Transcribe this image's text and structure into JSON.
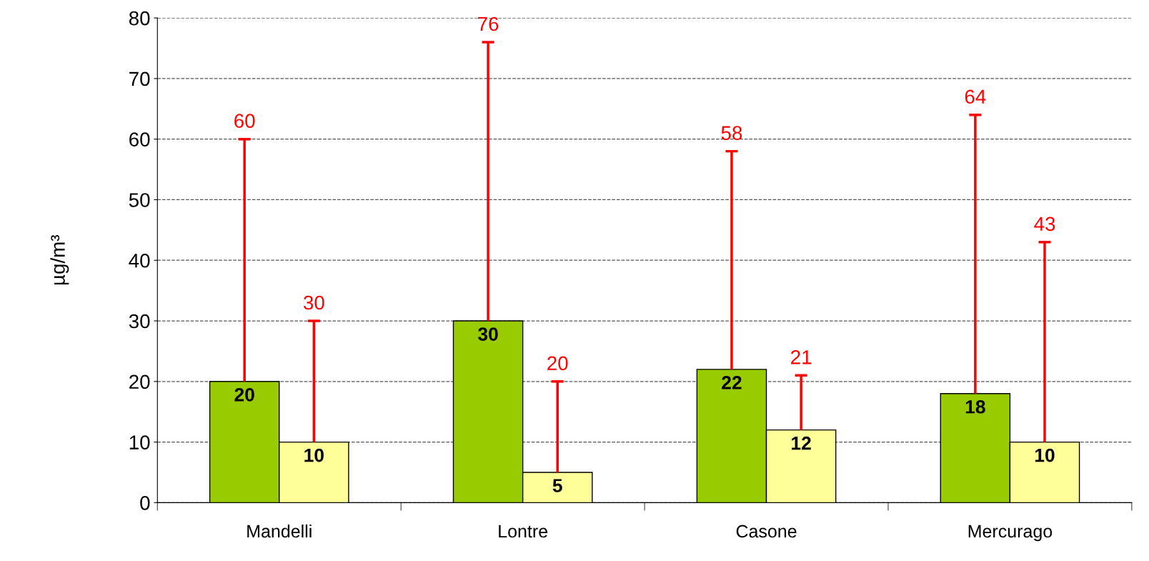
{
  "chart_data": {
    "type": "bar",
    "ylabel": "µg/m³",
    "categories": [
      "Mandelli",
      "Lontre",
      "Casone",
      "Mercurago"
    ],
    "series": [
      {
        "color": "#99cc00",
        "values": [
          20,
          30,
          22,
          18
        ],
        "errors": [
          [
            20,
            60
          ],
          [
            30,
            76
          ],
          [
            22,
            58
          ],
          [
            18,
            64
          ]
        ]
      },
      {
        "color": "#ffff99",
        "values": [
          10,
          5,
          12,
          10
        ],
        "errors": [
          [
            10,
            30
          ],
          [
            5,
            20
          ],
          [
            12,
            21
          ],
          [
            10,
            43
          ]
        ]
      }
    ],
    "annotations": [
      "60",
      "30",
      "76",
      "20",
      "58",
      "21",
      "64",
      "43"
    ],
    "ylim": [
      0,
      80
    ],
    "yticks": [
      0,
      10,
      20,
      30,
      40,
      50,
      60,
      70,
      80
    ],
    "grid": "y",
    "data_labels": true,
    "legend": false
  }
}
